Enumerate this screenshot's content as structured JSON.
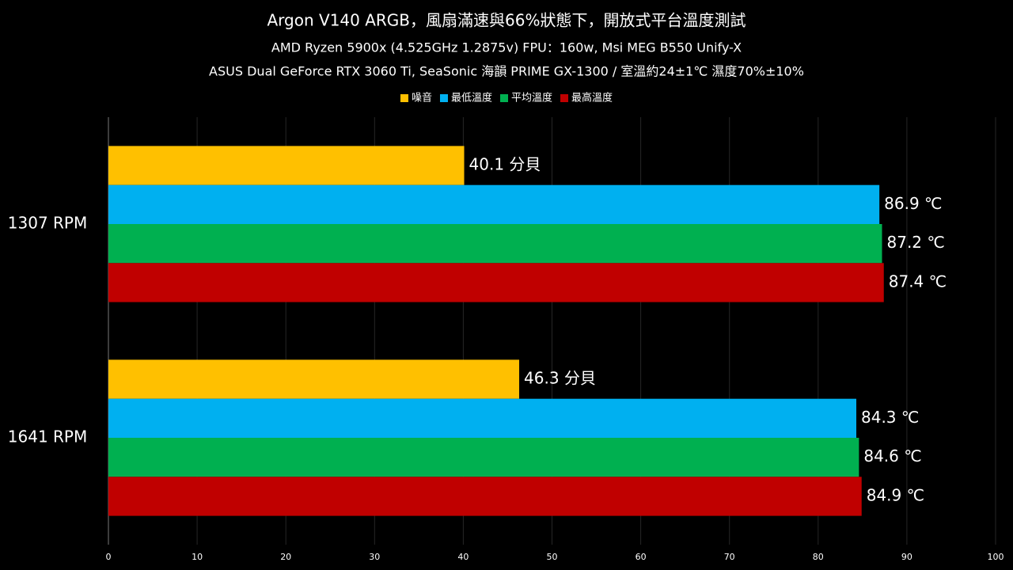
{
  "chart_data": {
    "type": "barh",
    "title": "Argon V140 ARGB，風扇滿速與66%狀態下，開放式平台溫度測試",
    "subtitle": [
      "AMD Ryzen 5900x (4.525GHz 1.2875v) FPU：160w, Msi MEG B550 Unify-X",
      "ASUS Dual GeForce RTX 3060 Ti, SeaSonic 海韻 PRIME GX-1300 / 室溫約24±1℃ 濕度70%±10%"
    ],
    "categories": [
      "1307 RPM",
      "1641 RPM"
    ],
    "series": [
      {
        "name": "噪音",
        "color": "#ffc000",
        "values": [
          40.1,
          46.3
        ],
        "value_labels": [
          "40.1 分貝",
          "46.3 分貝"
        ]
      },
      {
        "name": "最低溫度",
        "color": "#00b0f0",
        "values": [
          86.9,
          84.3
        ],
        "value_labels": [
          "86.9 ℃",
          "84.3 ℃"
        ]
      },
      {
        "name": "平均溫度",
        "color": "#00b050",
        "values": [
          87.2,
          84.6
        ],
        "value_labels": [
          "87.2 ℃",
          "84.6 ℃"
        ]
      },
      {
        "name": "最高溫度",
        "color": "#c00000",
        "values": [
          87.4,
          84.9
        ],
        "value_labels": [
          "87.4 ℃",
          "84.9 ℃"
        ]
      }
    ],
    "xlim": [
      0,
      100
    ],
    "xticks": [
      0,
      10,
      20,
      30,
      40,
      50,
      60,
      70,
      80,
      90,
      100
    ],
    "grid": true,
    "legend": "top"
  }
}
